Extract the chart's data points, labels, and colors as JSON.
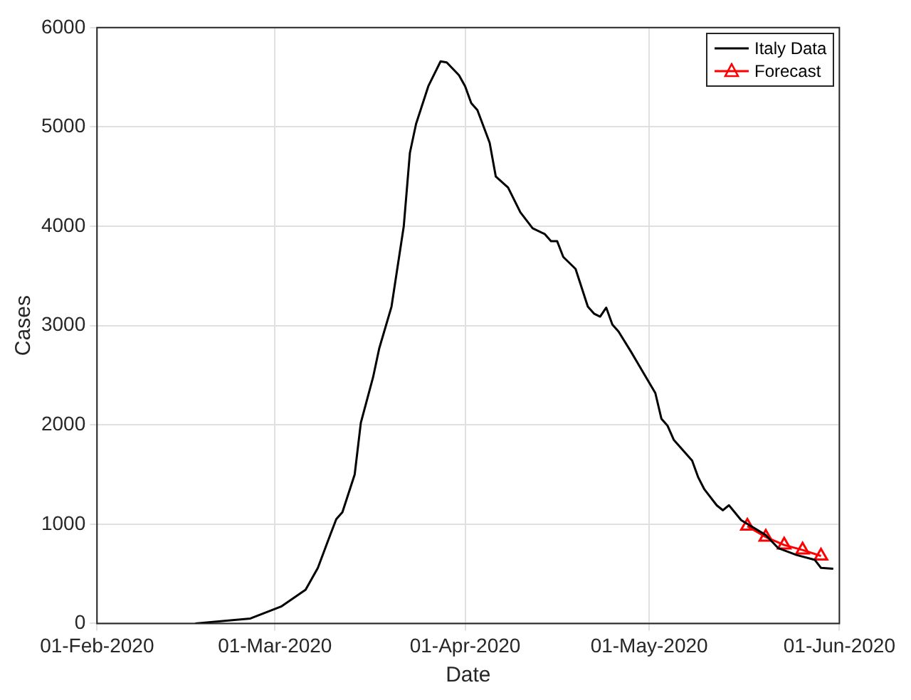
{
  "chart_data": {
    "type": "line",
    "xlabel": "Date",
    "ylabel": "Cases",
    "xlim": [
      "2020-02-01",
      "2020-06-01"
    ],
    "xticks": [
      {
        "value": "2020-02-01",
        "label": "01-Feb-2020"
      },
      {
        "value": "2020-03-01",
        "label": "01-Mar-2020"
      },
      {
        "value": "2020-04-01",
        "label": "01-Apr-2020"
      },
      {
        "value": "2020-05-01",
        "label": "01-May-2020"
      },
      {
        "value": "2020-06-01",
        "label": "01-Jun-2020"
      }
    ],
    "ylim": [
      0,
      6000
    ],
    "yticks": [
      0,
      1000,
      2000,
      3000,
      4000,
      5000,
      6000
    ],
    "grid": true,
    "legend": "top right",
    "series": [
      {
        "name": "Italy Data",
        "color": "#000000",
        "marker": "none",
        "x": [
          "2020-02-17",
          "2020-02-26",
          "2020-03-02",
          "2020-03-06",
          "2020-03-08",
          "2020-03-10",
          "2020-03-11",
          "2020-03-12",
          "2020-03-14",
          "2020-03-15",
          "2020-03-17",
          "2020-03-18",
          "2020-03-20",
          "2020-03-22",
          "2020-03-23",
          "2020-03-24",
          "2020-03-26",
          "2020-03-28",
          "2020-03-29",
          "2020-03-31",
          "2020-04-01",
          "2020-04-02",
          "2020-04-03",
          "2020-04-05",
          "2020-04-06",
          "2020-04-08",
          "2020-04-10",
          "2020-04-12",
          "2020-04-14",
          "2020-04-15",
          "2020-04-16",
          "2020-04-17",
          "2020-04-19",
          "2020-04-21",
          "2020-04-22",
          "2020-04-23",
          "2020-04-24",
          "2020-04-25",
          "2020-04-26",
          "2020-04-28",
          "2020-04-30",
          "2020-05-02",
          "2020-05-03",
          "2020-05-04",
          "2020-05-05",
          "2020-05-08",
          "2020-05-09",
          "2020-05-10",
          "2020-05-12",
          "2020-05-13",
          "2020-05-14",
          "2020-05-16",
          "2020-05-20",
          "2020-05-22",
          "2020-05-25",
          "2020-05-28",
          "2020-05-29",
          "2020-05-31"
        ],
        "values": [
          0,
          50,
          170,
          340,
          560,
          890,
          1050,
          1120,
          1500,
          2020,
          2480,
          2770,
          3190,
          4000,
          4740,
          5030,
          5410,
          5660,
          5650,
          5520,
          5410,
          5240,
          5170,
          4840,
          4500,
          4390,
          4140,
          3980,
          3920,
          3850,
          3850,
          3690,
          3570,
          3190,
          3120,
          3090,
          3180,
          3010,
          2940,
          2740,
          2530,
          2320,
          2060,
          1990,
          1850,
          1640,
          1470,
          1350,
          1190,
          1140,
          1190,
          1040,
          890,
          760,
          690,
          640,
          560,
          550
        ]
      },
      {
        "name": "Forecast",
        "color": "#ff0000",
        "marker": "triangle",
        "x": [
          "2020-05-17",
          "2020-05-20",
          "2020-05-23",
          "2020-05-26",
          "2020-05-29"
        ],
        "values": [
          980,
          870,
          790,
          740,
          680
        ]
      }
    ]
  }
}
